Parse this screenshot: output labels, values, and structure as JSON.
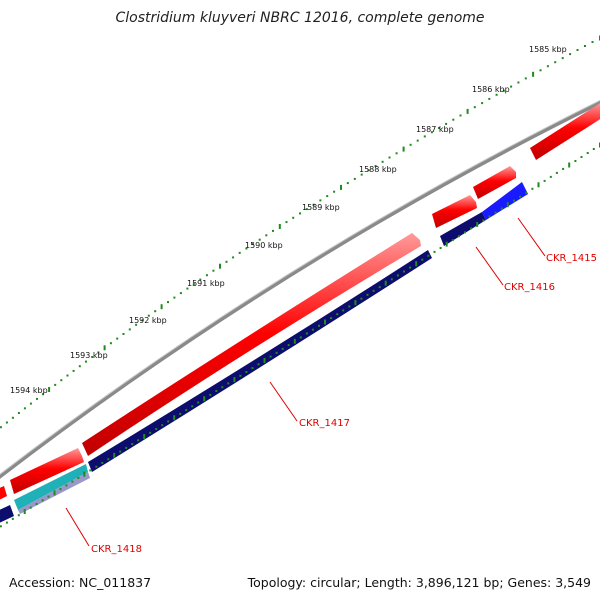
{
  "title": "Clostridium kluyveri NBRC 12016, complete genome",
  "footer": {
    "accession": "Accession: NC_011837",
    "summary": "Topology: circular; Length: 3,896,121 bp; Genes: 3,549"
  },
  "scale": {
    "unit": "kbp",
    "ticks": [
      "1585 kbp",
      "1586 kbp",
      "1587 kbp",
      "1588 kbp",
      "1589 kbp",
      "1590 kbp",
      "1591 kbp",
      "1592 kbp",
      "1593 kbp",
      "1594 kbp"
    ]
  },
  "genes": [
    {
      "locus": "CKR_1415",
      "color": "#1a1aff"
    },
    {
      "locus": "CKR_1416",
      "color": "#0d0d6e"
    },
    {
      "locus": "CKR_1417",
      "color": "#0d0d6e"
    },
    {
      "locus": "CKR_1418",
      "color": "#20b0b8"
    }
  ],
  "colors": {
    "forward_feature": "#ff0000",
    "reverse_feature": "#0d0d6e",
    "backbone": "#7f7f7f",
    "ticks": "#1f8a1f",
    "label": "#e00000"
  }
}
